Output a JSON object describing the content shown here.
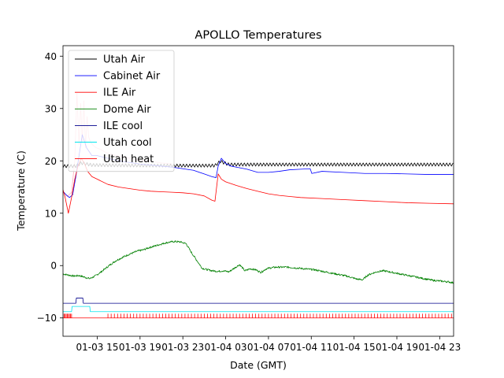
{
  "chart_data": {
    "type": "line",
    "title": "APOLLO Temperatures",
    "xlabel": "Date (GMT)",
    "ylabel": "Temperature (C)",
    "xlim": [
      11.8,
      48.3
    ],
    "ylim": [
      -13.5,
      42
    ],
    "grid": false,
    "legend_position": "top-left",
    "x_unit": "hours since 01-03 00:00 GMT",
    "xticks": [
      {
        "value": 15,
        "label": "01-03 15"
      },
      {
        "value": 19,
        "label": "01-03 19"
      },
      {
        "value": 23,
        "label": "01-03 23"
      },
      {
        "value": 27,
        "label": "01-04 03"
      },
      {
        "value": 31,
        "label": "01-04 07"
      },
      {
        "value": 35,
        "label": "01-04 11"
      },
      {
        "value": 39,
        "label": "01-04 15"
      },
      {
        "value": 43,
        "label": "01-04 19"
      },
      {
        "value": 47,
        "label": "01-04 23"
      }
    ],
    "yticks": [
      {
        "value": -10,
        "label": "−10"
      },
      {
        "value": 0,
        "label": "0"
      },
      {
        "value": 10,
        "label": "10"
      },
      {
        "value": 20,
        "label": "20"
      },
      {
        "value": 30,
        "label": "30"
      },
      {
        "value": 40,
        "label": "40"
      }
    ],
    "series": [
      {
        "name": "Utah Air",
        "color": "#000000",
        "style": "sawtooth",
        "x": [
          11.8,
          13.0,
          13.5,
          14.5,
          20.0,
          26.0,
          26.5,
          27.3,
          48.3
        ],
        "y": [
          19.0,
          19.0,
          19.6,
          19.2,
          19.1,
          19.1,
          19.9,
          19.3,
          19.3
        ],
        "amplitude": 0.6,
        "period": 0.3
      },
      {
        "name": "Cabinet Air",
        "color": "#0000ff",
        "x": [
          11.8,
          12.1,
          12.4,
          12.7,
          13.0,
          13.3,
          13.6,
          14.0,
          14.5,
          15.0,
          16.0,
          17.0,
          18.0,
          19.0,
          20.0,
          21.0,
          22.0,
          23.0,
          24.0,
          25.0,
          25.7,
          26.1,
          26.3,
          26.6,
          27.0,
          27.5,
          28.0,
          29.0,
          30.0,
          31.0,
          32.0,
          33.0,
          34.0,
          34.9,
          35.05,
          36.0,
          38.0,
          40.0,
          42.0,
          44.0,
          46.0,
          48.3
        ],
        "y": [
          14.2,
          13.5,
          13.0,
          13.5,
          17.0,
          21.0,
          25.0,
          22.5,
          21.0,
          21.0,
          20.5,
          20.0,
          19.7,
          19.4,
          19.2,
          19.0,
          18.8,
          18.5,
          18.2,
          17.5,
          17.0,
          16.8,
          19.0,
          20.5,
          19.5,
          19.0,
          18.8,
          18.4,
          17.8,
          17.8,
          18.0,
          18.3,
          18.4,
          18.5,
          17.6,
          18.0,
          17.8,
          17.6,
          17.6,
          17.5,
          17.4,
          17.4
        ]
      },
      {
        "name": "ILE Air",
        "color": "#ff0000",
        "x": [
          11.8,
          12.0,
          12.3,
          12.6,
          12.9,
          13.2,
          13.5,
          13.8,
          14.1,
          14.5,
          15.0,
          16.0,
          17.0,
          18.0,
          19.0,
          20.0,
          21.0,
          22.0,
          23.0,
          24.0,
          25.0,
          25.7,
          26.0,
          26.3,
          26.6,
          27.0,
          28.0,
          29.0,
          30.0,
          31.0,
          32.0,
          33.0,
          34.0,
          36.0,
          38.0,
          40.0,
          42.0,
          44.0,
          46.0,
          48.3
        ],
        "y": [
          14.5,
          13.0,
          10.0,
          13.0,
          16.5,
          19.0,
          20.5,
          19.5,
          18.0,
          17.0,
          16.5,
          15.5,
          15.0,
          14.7,
          14.4,
          14.2,
          14.1,
          14.0,
          13.9,
          13.7,
          13.3,
          12.5,
          12.3,
          17.5,
          16.5,
          16.0,
          15.3,
          14.7,
          14.2,
          13.7,
          13.4,
          13.2,
          13.0,
          12.8,
          12.6,
          12.4,
          12.2,
          12.0,
          11.9,
          11.8
        ]
      },
      {
        "name": "Dome Air",
        "color": "#008000",
        "style": "noisy",
        "x": [
          11.8,
          12.3,
          12.8,
          13.3,
          13.8,
          14.3,
          14.8,
          15.3,
          15.8,
          16.3,
          16.8,
          17.3,
          17.8,
          18.3,
          18.8,
          19.3,
          19.8,
          20.3,
          20.8,
          21.3,
          21.8,
          22.3,
          22.8,
          23.3,
          23.8,
          24.3,
          24.8,
          25.3,
          25.8,
          26.3,
          26.8,
          27.3,
          27.8,
          28.3,
          28.8,
          29.3,
          29.8,
          30.3,
          30.8,
          31.3,
          31.8,
          32.3,
          32.8,
          33.3,
          33.8,
          34.3,
          34.8,
          35.3,
          35.8,
          36.3,
          36.8,
          37.3,
          37.8,
          38.3,
          38.8,
          39.3,
          39.8,
          40.3,
          40.8,
          41.3,
          41.8,
          42.3,
          42.8,
          43.3,
          43.8,
          44.3,
          44.8,
          45.3,
          45.8,
          46.3,
          46.8,
          47.3,
          47.8,
          48.3
        ],
        "y": [
          -1.6,
          -1.8,
          -2.0,
          -1.9,
          -2.2,
          -2.5,
          -2.0,
          -1.3,
          -0.5,
          0.3,
          1.0,
          1.5,
          2.0,
          2.4,
          2.8,
          3.0,
          3.4,
          3.7,
          4.0,
          4.3,
          4.5,
          4.6,
          4.5,
          4.2,
          2.5,
          1.0,
          -0.5,
          -0.8,
          -1.0,
          -1.1,
          -1.0,
          -1.2,
          -0.5,
          0.2,
          -1.0,
          -0.6,
          -0.8,
          -1.3,
          -0.6,
          -0.4,
          -0.3,
          -0.3,
          -0.3,
          -0.4,
          -0.5,
          -0.6,
          -0.7,
          -0.8,
          -1.0,
          -1.2,
          -1.4,
          -1.6,
          -1.8,
          -2.0,
          -2.3,
          -2.6,
          -2.7,
          -1.8,
          -1.4,
          -1.1,
          -1.0,
          -1.2,
          -1.4,
          -1.6,
          -1.8,
          -2.0,
          -2.2,
          -2.4,
          -2.6,
          -2.8,
          -2.9,
          -3.0,
          -3.1,
          -3.3
        ]
      },
      {
        "name": "ILE cool",
        "color": "#00008b",
        "style": "step",
        "x": [
          11.8,
          13.0,
          13.05,
          13.65,
          13.7,
          48.3
        ],
        "y": [
          -7.2,
          -7.2,
          -6.2,
          -6.2,
          -7.2,
          -7.2
        ]
      },
      {
        "name": "Utah cool",
        "color": "#00e5ee",
        "style": "step",
        "x": [
          11.8,
          12.6,
          12.65,
          14.3,
          14.35,
          48.3
        ],
        "y": [
          -8.8,
          -8.8,
          -7.8,
          -7.8,
          -8.8,
          -8.8
        ]
      },
      {
        "name": "Utah heat",
        "color": "#ff0000",
        "style": "pulses",
        "x": [
          11.8,
          48.3
        ],
        "y": [
          -10.0,
          -10.0
        ],
        "pulse_high": -9.2,
        "pulse_ranges": [
          [
            11.8,
            12.6,
            0.1
          ],
          [
            16.0,
            48.3,
            0.3
          ]
        ]
      }
    ],
    "overlay": {
      "color": "#ffb6c1",
      "x": [
        11.8,
        12.2,
        12.6,
        12.9,
        13.1,
        13.3,
        13.45,
        13.6,
        13.75,
        13.9,
        14.05,
        14.2,
        14.4,
        14.6,
        14.9,
        15.3,
        15.8,
        16.3,
        17.0,
        18.0,
        19.0,
        20.0,
        21.0,
        22.0
      ],
      "y": [
        14.0,
        13.2,
        14.0,
        20.0,
        33.0,
        23.0,
        31.0,
        23.5,
        31.5,
        22.5,
        28.5,
        24.5,
        23.5,
        23.0,
        22.5,
        22.2,
        21.6,
        21.3,
        20.9,
        20.5,
        20.1,
        19.9,
        19.6,
        19.4
      ]
    }
  }
}
